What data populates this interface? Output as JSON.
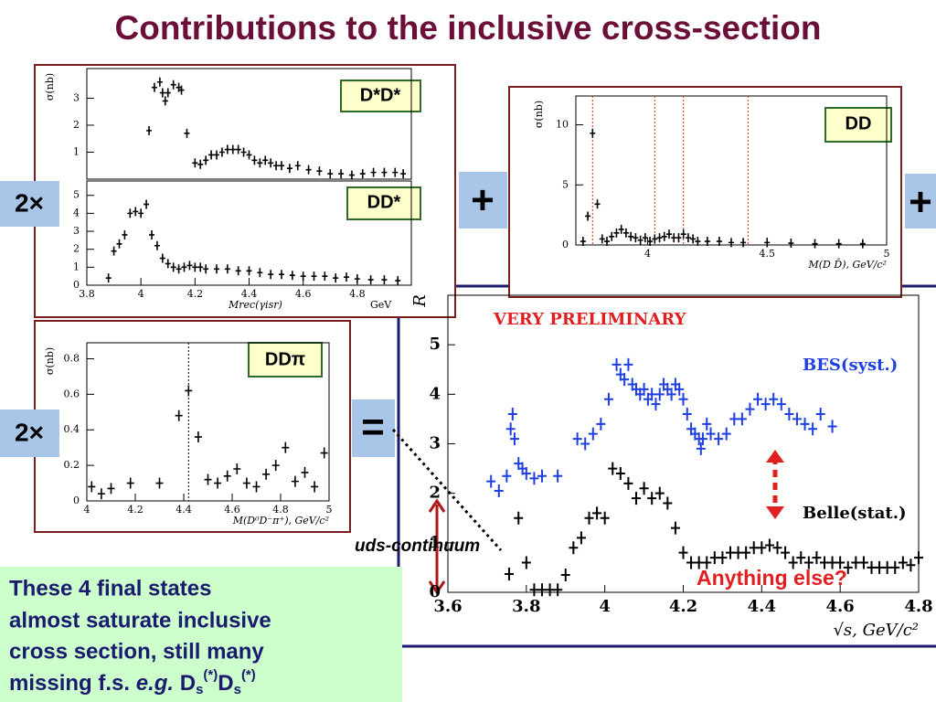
{
  "title": "Contributions to the inclusive cross-section",
  "symbols": {
    "times_top": "2×",
    "times_bottom": "2×",
    "plus_middle": "+",
    "plus_right": "+",
    "equals": "="
  },
  "annotations": {
    "uds": "uds-continuum",
    "else": "Anything else?"
  },
  "note": [
    "These 4 final states",
    "almost saturate inclusive",
    "cross section, still many",
    "missing f.s."
  ],
  "example": [
    "e.g.",
    "D",
    "s",
    "(*)",
    "D",
    "s",
    "(*)"
  ],
  "chart_data": [
    {
      "type": "scatter",
      "label": "D*D*",
      "y_label": "σ(nb)",
      "xlim": [
        3.8,
        5.0
      ],
      "ylim": [
        0,
        4.1
      ],
      "yticks": [
        1,
        2,
        3
      ],
      "series": [
        {
          "color": "#000000",
          "x": [
            4.03,
            4.05,
            4.07,
            4.08,
            4.09,
            4.1,
            4.12,
            4.14,
            4.15,
            4.17,
            4.2,
            4.22,
            4.24,
            4.26,
            4.28,
            4.3,
            4.32,
            4.34,
            4.36,
            4.38,
            4.4,
            4.42,
            4.44,
            4.46,
            4.48,
            4.5,
            4.52,
            4.55,
            4.58,
            4.62,
            4.66,
            4.7,
            4.74,
            4.78,
            4.82,
            4.86,
            4.9,
            4.94,
            4.97
          ],
          "values": [
            1.8,
            3.4,
            3.6,
            3.2,
            2.9,
            3.2,
            3.5,
            3.4,
            3.3,
            1.7,
            0.6,
            0.55,
            0.7,
            0.9,
            0.9,
            1.0,
            1.1,
            1.1,
            1.1,
            1.0,
            0.9,
            0.7,
            0.6,
            0.7,
            0.6,
            0.5,
            0.5,
            0.4,
            0.5,
            0.35,
            0.3,
            0.2,
            0.2,
            0.15,
            0.2,
            0.25,
            0.25,
            0.25,
            0.2
          ]
        }
      ]
    },
    {
      "type": "scatter",
      "label": "DD*",
      "x_label": "Mrec(γisr)",
      "x_unit": "GeV",
      "xlim": [
        3.8,
        5.0
      ],
      "ylim": [
        0,
        5.8
      ],
      "yticks": [
        0,
        1,
        2,
        3,
        4,
        5
      ],
      "xticks": [
        3.8,
        4,
        4.2,
        4.4,
        4.6,
        4.8
      ],
      "series": [
        {
          "color": "#000000",
          "x": [
            3.88,
            3.9,
            3.92,
            3.94,
            3.96,
            3.98,
            4.0,
            4.02,
            4.04,
            4.06,
            4.08,
            4.1,
            4.12,
            4.14,
            4.16,
            4.18,
            4.2,
            4.22,
            4.24,
            4.28,
            4.32,
            4.36,
            4.4,
            4.44,
            4.48,
            4.52,
            4.56,
            4.6,
            4.64,
            4.68,
            4.72,
            4.76,
            4.8,
            4.85,
            4.9,
            4.95
          ],
          "values": [
            0.4,
            1.9,
            2.3,
            2.8,
            4.0,
            4.1,
            4.0,
            4.5,
            2.8,
            2.2,
            1.5,
            1.2,
            1.0,
            0.9,
            1.0,
            1.1,
            1.0,
            1.0,
            0.9,
            0.9,
            0.9,
            0.8,
            0.8,
            0.7,
            0.6,
            0.6,
            0.55,
            0.5,
            0.5,
            0.5,
            0.4,
            0.45,
            0.35,
            0.3,
            0.3,
            0.25
          ]
        }
      ]
    },
    {
      "type": "scatter",
      "label": "DD",
      "y_label": "σ(nb)",
      "x_label": "M(D D̄), GeV/c²",
      "xlim": [
        3.7,
        5.0
      ],
      "ylim": [
        0,
        12.4
      ],
      "yticks": [
        0,
        5,
        10
      ],
      "xticks": [
        4,
        4.5,
        5
      ],
      "vlines": [
        3.77,
        4.03,
        4.15,
        4.42
      ],
      "series": [
        {
          "color": "#000000",
          "x": [
            3.73,
            3.75,
            3.77,
            3.79,
            3.81,
            3.83,
            3.85,
            3.87,
            3.89,
            3.91,
            3.93,
            3.95,
            3.97,
            3.99,
            4.01,
            4.03,
            4.05,
            4.07,
            4.09,
            4.11,
            4.13,
            4.15,
            4.17,
            4.19,
            4.21,
            4.25,
            4.3,
            4.35,
            4.4,
            4.5,
            4.6,
            4.7,
            4.8,
            4.9
          ],
          "values": [
            0.3,
            2.4,
            9.3,
            3.4,
            0.5,
            0.3,
            0.7,
            1.0,
            1.3,
            1.0,
            0.7,
            0.6,
            0.4,
            0.6,
            0.3,
            0.5,
            0.6,
            0.7,
            0.9,
            0.6,
            0.6,
            0.9,
            0.6,
            0.5,
            0.3,
            0.3,
            0.3,
            0.2,
            0.2,
            0.2,
            0.15,
            0.1,
            0.1,
            0.1
          ]
        }
      ]
    },
    {
      "type": "scatter",
      "label": "DDπ",
      "y_label": "σ(nb)",
      "x_label": "M(D⁰D⁻π⁺), GeV/c²",
      "xlim": [
        4,
        5
      ],
      "ylim": [
        0,
        0.89
      ],
      "yticks": [
        0,
        0.2,
        0.4,
        0.6,
        0.8
      ],
      "xticks": [
        4,
        4.2,
        4.4,
        4.6,
        4.8,
        5
      ],
      "vlines": [
        4.42
      ],
      "series": [
        {
          "color": "#000000",
          "x": [
            4.02,
            4.06,
            4.1,
            4.18,
            4.3,
            4.38,
            4.42,
            4.46,
            4.5,
            4.54,
            4.58,
            4.62,
            4.66,
            4.7,
            4.74,
            4.78,
            4.82,
            4.86,
            4.9,
            4.94,
            4.98
          ],
          "values": [
            0.08,
            0.04,
            0.07,
            0.1,
            0.1,
            0.48,
            0.62,
            0.36,
            0.12,
            0.1,
            0.14,
            0.18,
            0.1,
            0.08,
            0.15,
            0.2,
            0.3,
            0.11,
            0.16,
            0.08,
            0.27
          ]
        }
      ]
    },
    {
      "type": "scatter",
      "title": "VERY PRELIMINARY",
      "y_label": "R",
      "x_label": "√s, GeV/c²",
      "xlim": [
        3.6,
        4.8
      ],
      "ylim": [
        0,
        6
      ],
      "yticks": [
        0,
        1,
        2,
        3,
        4,
        5
      ],
      "xticks": [
        3.6,
        3.8,
        4,
        4.2,
        4.4,
        4.6,
        4.8
      ],
      "series": [
        {
          "name": "BES(syst.)",
          "color": "#1f3fe0",
          "x": [
            3.71,
            3.73,
            3.75,
            3.76,
            3.765,
            3.77,
            3.78,
            3.79,
            3.8,
            3.82,
            3.84,
            3.88,
            3.93,
            3.95,
            3.97,
            3.99,
            4.01,
            4.03,
            4.04,
            4.05,
            4.06,
            4.07,
            4.08,
            4.09,
            4.1,
            4.11,
            4.12,
            4.13,
            4.14,
            4.15,
            4.16,
            4.17,
            4.18,
            4.19,
            4.2,
            4.21,
            4.22,
            4.23,
            4.24,
            4.245,
            4.25,
            4.26,
            4.27,
            4.29,
            4.31,
            4.33,
            4.35,
            4.37,
            4.39,
            4.41,
            4.43,
            4.45,
            4.47,
            4.49,
            4.51,
            4.53,
            4.55,
            4.58
          ],
          "values": [
            2.24,
            2.05,
            2.35,
            3.3,
            3.6,
            3.1,
            2.6,
            2.5,
            2.4,
            2.3,
            2.35,
            2.35,
            3.1,
            3.0,
            3.2,
            3.4,
            3.9,
            4.6,
            4.4,
            4.3,
            4.6,
            4.2,
            4.1,
            4.0,
            4.1,
            3.9,
            4.0,
            3.8,
            4.0,
            4.2,
            4.1,
            4.0,
            4.2,
            4.1,
            3.9,
            3.6,
            3.3,
            3.2,
            3.1,
            2.9,
            3.1,
            3.4,
            3.2,
            3.1,
            3.2,
            3.5,
            3.5,
            3.7,
            3.9,
            3.8,
            3.9,
            3.8,
            3.6,
            3.5,
            3.4,
            3.3,
            3.6,
            3.35
          ]
        },
        {
          "name": "Belle(stat.)",
          "color": "#000000",
          "x": [
            3.756,
            3.78,
            3.8,
            3.82,
            3.84,
            3.86,
            3.88,
            3.9,
            3.92,
            3.94,
            3.96,
            3.98,
            4.0,
            4.02,
            4.04,
            4.06,
            4.08,
            4.1,
            4.12,
            4.14,
            4.16,
            4.18,
            4.2,
            4.22,
            4.24,
            4.26,
            4.28,
            4.3,
            4.32,
            4.34,
            4.36,
            4.38,
            4.4,
            4.42,
            4.44,
            4.46,
            4.48,
            4.5,
            4.52,
            4.54,
            4.56,
            4.58,
            4.6,
            4.62,
            4.64,
            4.66,
            4.68,
            4.7,
            4.72,
            4.74,
            4.76,
            4.78,
            4.8
          ],
          "values": [
            0.37,
            1.5,
            0.6,
            0.05,
            0.05,
            0.05,
            0.05,
            0.35,
            0.9,
            1.1,
            1.5,
            1.6,
            1.5,
            2.5,
            2.4,
            2.2,
            1.9,
            2.1,
            1.9,
            2.0,
            1.8,
            1.3,
            0.8,
            0.6,
            0.6,
            0.6,
            0.7,
            0.7,
            0.8,
            0.8,
            0.8,
            0.9,
            0.9,
            0.95,
            0.9,
            0.8,
            0.6,
            0.7,
            0.6,
            0.7,
            0.6,
            0.6,
            0.6,
            0.5,
            0.6,
            0.6,
            0.5,
            0.5,
            0.5,
            0.5,
            0.6,
            0.55,
            0.7
          ]
        }
      ]
    }
  ]
}
